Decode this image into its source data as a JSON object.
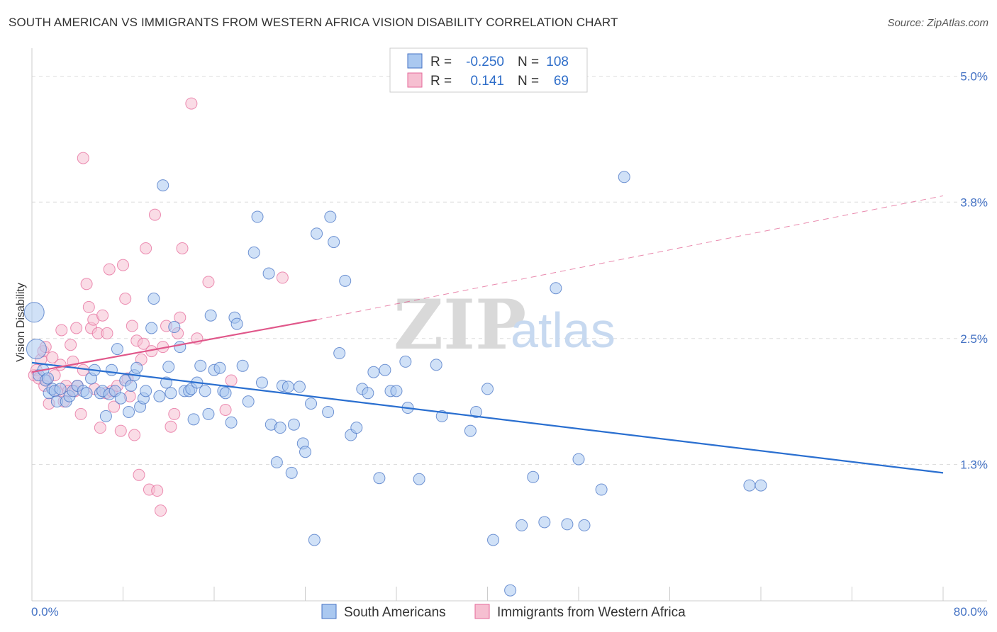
{
  "header": {
    "title": "SOUTH AMERICAN VS IMMIGRANTS FROM WESTERN AFRICA VISION DISABILITY CORRELATION CHART",
    "source": "Source: ZipAtlas.com"
  },
  "watermark": {
    "zip": "ZIP",
    "atlas": "atlas"
  },
  "colors": {
    "blue": "#4472c4",
    "blue_fill": "#aac8f0",
    "blue_line": "#2a6fd0",
    "pink": "#e56a9a",
    "pink_fill": "#f6bfd1",
    "pink_line": "#e0578a"
  },
  "legend": {
    "rows": [
      {
        "r_label": "R =",
        "r_value": "-0.250",
        "n_label": "N =",
        "n_value": "108"
      },
      {
        "r_label": "R =",
        "r_value": "0.141",
        "n_label": "N =",
        "n_value": "69"
      }
    ]
  },
  "bottom_legend": {
    "blue": "South Americans",
    "pink": "Immigrants from Western Africa"
  },
  "chart_data": {
    "type": "scatter",
    "title": "SOUTH AMERICAN VS IMMIGRANTS FROM WESTERN AFRICA VISION DISABILITY CORRELATION CHART",
    "xlabel": "",
    "ylabel": "Vision Disability",
    "xlim": [
      0,
      80
    ],
    "ylim": [
      0,
      5.2
    ],
    "x_tick_labels": [
      "0.0%",
      "80.0%"
    ],
    "y_ticks": [
      1.3,
      2.5,
      3.8,
      5.0
    ],
    "y_tick_labels": [
      "1.3%",
      "2.5%",
      "3.8%",
      "5.0%"
    ],
    "grid": true,
    "series": [
      {
        "name": "South Americans",
        "color": "#4472c4",
        "r": -0.25,
        "n": 108,
        "trend": {
          "x": [
            0,
            80
          ],
          "y": [
            2.27,
            1.22
          ]
        },
        "points": [
          [
            0.2,
            2.75
          ],
          [
            0.4,
            2.4
          ],
          [
            0.6,
            2.15
          ],
          [
            1.0,
            2.2
          ],
          [
            1.2,
            2.1
          ],
          [
            1.4,
            2.12
          ],
          [
            1.5,
            1.98
          ],
          [
            1.8,
            2.02
          ],
          [
            2.0,
            2.0
          ],
          [
            2.2,
            1.9
          ],
          [
            2.5,
            2.02
          ],
          [
            3.0,
            1.9
          ],
          [
            3.3,
            1.95
          ],
          [
            3.6,
            2.0
          ],
          [
            4.0,
            2.05
          ],
          [
            4.5,
            2.0
          ],
          [
            4.8,
            1.98
          ],
          [
            5.2,
            2.12
          ],
          [
            5.5,
            2.2
          ],
          [
            6.0,
            1.98
          ],
          [
            6.2,
            2.0
          ],
          [
            6.5,
            1.76
          ],
          [
            6.8,
            1.97
          ],
          [
            7.0,
            2.2
          ],
          [
            7.3,
            2.0
          ],
          [
            7.5,
            2.4
          ],
          [
            7.8,
            1.93
          ],
          [
            8.2,
            2.1
          ],
          [
            8.5,
            1.8
          ],
          [
            8.7,
            2.05
          ],
          [
            9.0,
            2.15
          ],
          [
            9.2,
            2.22
          ],
          [
            9.5,
            1.85
          ],
          [
            9.8,
            1.93
          ],
          [
            10.0,
            2.0
          ],
          [
            10.5,
            2.6
          ],
          [
            10.7,
            2.88
          ],
          [
            11.2,
            1.95
          ],
          [
            11.5,
            3.96
          ],
          [
            11.8,
            2.08
          ],
          [
            12.0,
            2.23
          ],
          [
            12.2,
            1.98
          ],
          [
            12.5,
            2.61
          ],
          [
            13.0,
            2.42
          ],
          [
            13.4,
            2.0
          ],
          [
            13.8,
            2.0
          ],
          [
            14.0,
            2.02
          ],
          [
            14.2,
            1.73
          ],
          [
            14.5,
            2.08
          ],
          [
            14.8,
            2.24
          ],
          [
            15.2,
            2.0
          ],
          [
            15.5,
            1.78
          ],
          [
            15.7,
            2.72
          ],
          [
            16.0,
            2.2
          ],
          [
            16.5,
            2.22
          ],
          [
            16.8,
            2.0
          ],
          [
            17.0,
            1.98
          ],
          [
            17.5,
            1.7
          ],
          [
            17.8,
            2.7
          ],
          [
            18.0,
            2.64
          ],
          [
            18.5,
            2.24
          ],
          [
            19.0,
            1.9
          ],
          [
            19.5,
            3.32
          ],
          [
            19.8,
            3.66
          ],
          [
            20.2,
            2.08
          ],
          [
            20.8,
            3.12
          ],
          [
            21.0,
            1.68
          ],
          [
            21.5,
            1.32
          ],
          [
            21.8,
            1.65
          ],
          [
            22.0,
            2.05
          ],
          [
            22.5,
            2.04
          ],
          [
            22.8,
            1.22
          ],
          [
            23.0,
            1.68
          ],
          [
            23.5,
            2.04
          ],
          [
            23.8,
            1.5
          ],
          [
            24.0,
            1.42
          ],
          [
            24.5,
            1.88
          ],
          [
            24.8,
            0.58
          ],
          [
            25.0,
            3.5
          ],
          [
            26.0,
            1.8
          ],
          [
            26.2,
            3.66
          ],
          [
            27.0,
            2.36
          ],
          [
            27.5,
            3.05
          ],
          [
            28.0,
            1.58
          ],
          [
            28.5,
            1.65
          ],
          [
            29.0,
            2.02
          ],
          [
            29.5,
            1.98
          ],
          [
            30.0,
            2.18
          ],
          [
            31.0,
            2.2
          ],
          [
            31.5,
            2.0
          ],
          [
            32.0,
            2.0
          ],
          [
            32.8,
            2.28
          ],
          [
            33.0,
            1.84
          ],
          [
            35.5,
            2.25
          ],
          [
            36.0,
            1.76
          ],
          [
            38.5,
            1.62
          ],
          [
            39.0,
            1.8
          ],
          [
            40.0,
            2.02
          ],
          [
            40.5,
            0.58
          ],
          [
            43.0,
            0.72
          ],
          [
            45.0,
            0.75
          ],
          [
            46.0,
            2.98
          ],
          [
            47.0,
            0.73
          ],
          [
            48.0,
            1.35
          ],
          [
            48.5,
            0.72
          ],
          [
            50.0,
            1.06
          ],
          [
            52.0,
            4.04
          ],
          [
            63.0,
            1.1
          ],
          [
            64.0,
            1.1
          ],
          [
            34.0,
            1.16
          ],
          [
            26.5,
            3.42
          ],
          [
            30.5,
            1.17
          ],
          [
            42.0,
            0.1
          ],
          [
            44.0,
            1.18
          ]
        ]
      },
      {
        "name": "Immigrants from Western Africa",
        "color": "#e56a9a",
        "r": 0.141,
        "n": 69,
        "trend": {
          "x": [
            0,
            25
          ],
          "y": [
            2.18,
            2.68
          ]
        },
        "trend_dashed": {
          "x": [
            25,
            80
          ],
          "y": [
            2.68,
            3.86
          ]
        },
        "points": [
          [
            0.2,
            2.15
          ],
          [
            0.4,
            2.2
          ],
          [
            0.6,
            2.12
          ],
          [
            0.8,
            2.3
          ],
          [
            1.0,
            2.38
          ],
          [
            1.2,
            2.42
          ],
          [
            1.3,
            2.1
          ],
          [
            1.5,
            1.88
          ],
          [
            1.8,
            2.32
          ],
          [
            2.0,
            2.15
          ],
          [
            2.2,
            2.0
          ],
          [
            2.5,
            2.25
          ],
          [
            2.8,
            1.9
          ],
          [
            3.0,
            2.05
          ],
          [
            3.2,
            2.0
          ],
          [
            3.4,
            2.44
          ],
          [
            3.6,
            2.28
          ],
          [
            3.8,
            2.0
          ],
          [
            4.0,
            2.05
          ],
          [
            4.3,
            1.78
          ],
          [
            4.5,
            2.2
          ],
          [
            4.8,
            3.02
          ],
          [
            5.0,
            2.8
          ],
          [
            5.2,
            2.6
          ],
          [
            5.4,
            2.68
          ],
          [
            5.5,
            2.02
          ],
          [
            5.8,
            2.55
          ],
          [
            6.0,
            1.65
          ],
          [
            6.2,
            2.72
          ],
          [
            6.5,
            1.98
          ],
          [
            6.8,
            3.16
          ],
          [
            7.0,
            2.0
          ],
          [
            7.2,
            1.85
          ],
          [
            7.5,
            2.05
          ],
          [
            7.8,
            1.62
          ],
          [
            8.0,
            3.2
          ],
          [
            8.2,
            2.88
          ],
          [
            8.4,
            2.12
          ],
          [
            8.6,
            1.95
          ],
          [
            8.8,
            2.62
          ],
          [
            9.0,
            1.58
          ],
          [
            9.2,
            2.48
          ],
          [
            9.4,
            1.2
          ],
          [
            9.6,
            2.3
          ],
          [
            9.8,
            2.45
          ],
          [
            10.0,
            3.36
          ],
          [
            10.3,
            1.06
          ],
          [
            10.5,
            2.38
          ],
          [
            10.8,
            3.68
          ],
          [
            11.0,
            1.05
          ],
          [
            11.3,
            0.86
          ],
          [
            11.5,
            2.42
          ],
          [
            11.8,
            2.62
          ],
          [
            12.2,
            1.66
          ],
          [
            12.5,
            1.78
          ],
          [
            12.8,
            2.55
          ],
          [
            13.0,
            2.7
          ],
          [
            13.2,
            3.36
          ],
          [
            14.0,
            4.74
          ],
          [
            14.5,
            2.5
          ],
          [
            15.5,
            3.04
          ],
          [
            17.0,
            1.82
          ],
          [
            17.5,
            2.1
          ],
          [
            22.0,
            3.08
          ],
          [
            4.5,
            4.22
          ],
          [
            2.6,
            2.58
          ],
          [
            6.6,
            2.55
          ],
          [
            3.9,
            2.6
          ],
          [
            1.1,
            2.05
          ]
        ]
      }
    ]
  }
}
